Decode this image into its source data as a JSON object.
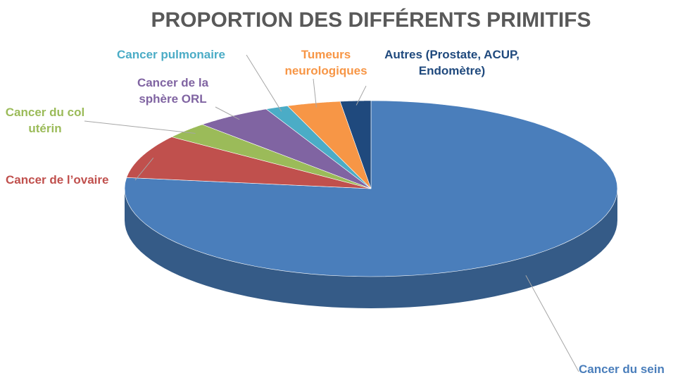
{
  "chart_data": {
    "type": "pie",
    "title": "PROPORTION DES DIFFÉRENTS PRIMITIFS",
    "categories": [
      "Cancer du sein",
      "Cancer de l’ovaire",
      "Cancer du col utérin",
      "Cancer de la sphère ORL",
      "Cancer pulmonaire",
      "Tumeurs neurologiques",
      "Autres (Prostate, ACUP, Endomètre)"
    ],
    "values": [
      77,
      8,
      3,
      5,
      1.5,
      3.5,
      2
    ],
    "colors": [
      "#4a7ebb",
      "#c0504d",
      "#9bbb59",
      "#8064a2",
      "#4bacc6",
      "#f79646",
      "#1f497d"
    ]
  }
}
